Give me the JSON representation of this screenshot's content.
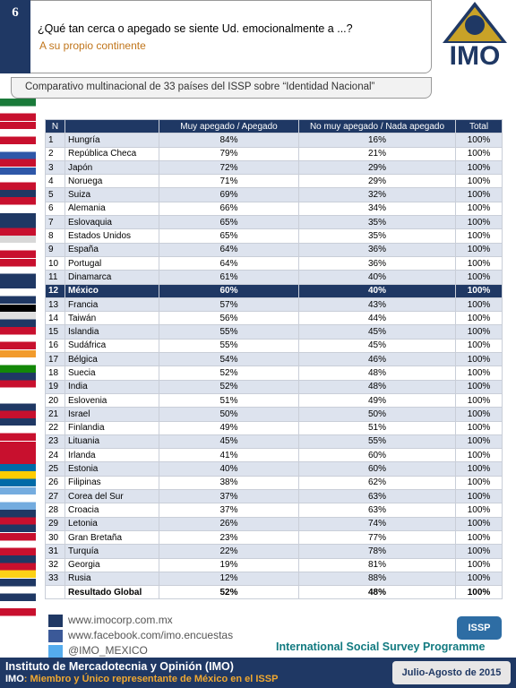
{
  "header": {
    "number": "6",
    "question": "¿Qué tan cerca o apegado se siente Ud. emocionalmente a ...?",
    "subquestion": "A su propio continente",
    "logo": "IMO",
    "subtitle": "Comparativo multinacional de 33 países del ISSP sobre “Identidad Nacional”"
  },
  "table": {
    "header": [
      "N",
      "",
      "Muy apegado / Apegado",
      "No muy apegado / Nada apegado",
      "Total"
    ],
    "rows": [
      [
        "1",
        "Hungría",
        "84%",
        "16%",
        "100%"
      ],
      [
        "2",
        "República Checa",
        "79%",
        "21%",
        "100%"
      ],
      [
        "3",
        "Japón",
        "72%",
        "29%",
        "100%"
      ],
      [
        "4",
        "Noruega",
        "71%",
        "29%",
        "100%"
      ],
      [
        "5",
        "Suiza",
        "69%",
        "32%",
        "100%"
      ],
      [
        "6",
        "Alemania",
        "66%",
        "34%",
        "100%"
      ],
      [
        "7",
        "Eslovaquia",
        "65%",
        "35%",
        "100%"
      ],
      [
        "8",
        "Estados Unidos",
        "65%",
        "35%",
        "100%"
      ],
      [
        "9",
        "España",
        "64%",
        "36%",
        "100%"
      ],
      [
        "10",
        "Portugal",
        "64%",
        "36%",
        "100%"
      ],
      [
        "11",
        "Dinamarca",
        "61%",
        "40%",
        "100%"
      ],
      [
        "12",
        "México",
        "60%",
        "40%",
        "100%"
      ],
      [
        "13",
        "Francia",
        "57%",
        "43%",
        "100%"
      ],
      [
        "14",
        "Taiwán",
        "56%",
        "44%",
        "100%"
      ],
      [
        "15",
        "Islandia",
        "55%",
        "45%",
        "100%"
      ],
      [
        "16",
        "Sudáfrica",
        "55%",
        "45%",
        "100%"
      ],
      [
        "17",
        "Bélgica",
        "54%",
        "46%",
        "100%"
      ],
      [
        "18",
        "Suecia",
        "52%",
        "48%",
        "100%"
      ],
      [
        "19",
        "India",
        "52%",
        "48%",
        "100%"
      ],
      [
        "20",
        "Eslovenia",
        "51%",
        "49%",
        "100%"
      ],
      [
        "21",
        "Israel",
        "50%",
        "50%",
        "100%"
      ],
      [
        "22",
        "Finlandia",
        "49%",
        "51%",
        "100%"
      ],
      [
        "23",
        "Lituania",
        "45%",
        "55%",
        "100%"
      ],
      [
        "24",
        "Irlanda",
        "41%",
        "60%",
        "100%"
      ],
      [
        "25",
        "Estonia",
        "40%",
        "60%",
        "100%"
      ],
      [
        "26",
        "Filipinas",
        "38%",
        "62%",
        "100%"
      ],
      [
        "27",
        "Corea del Sur",
        "37%",
        "63%",
        "100%"
      ],
      [
        "28",
        "Croacia",
        "37%",
        "63%",
        "100%"
      ],
      [
        "29",
        "Letonia",
        "26%",
        "74%",
        "100%"
      ],
      [
        "30",
        "Gran Bretaña",
        "23%",
        "77%",
        "100%"
      ],
      [
        "31",
        "Turquía",
        "22%",
        "78%",
        "100%"
      ],
      [
        "32",
        "Georgia",
        "19%",
        "81%",
        "100%"
      ],
      [
        "33",
        "Rusia",
        "12%",
        "88%",
        "100%"
      ]
    ],
    "global": [
      "Resultado Global",
      "52%",
      "48%",
      "100%"
    ]
  },
  "footer": {
    "links": [
      "www.imocorp.com.mx",
      "www.facebook.com/imo.encuestas",
      "@IMO_MEXICO"
    ],
    "issp_logo": "ISSP",
    "issp_name": "International Social Survey Programme",
    "institute": "Instituto de Mercadotecnia y Opinión (IMO)",
    "member_prefix": "IMO",
    "member": ": Miembro y Único representante de México en el ISSP",
    "date": "Julio-Agosto de 2015"
  }
}
